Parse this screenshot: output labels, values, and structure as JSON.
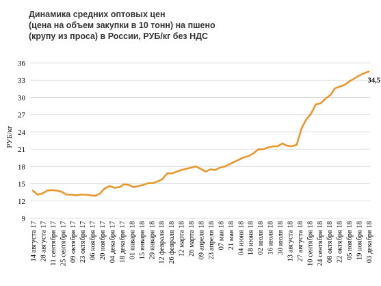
{
  "chart_data": {
    "type": "line",
    "title": [
      "Динамика средних оптовых цен",
      "(цена на объем закупки в 10 тонн) на пшено",
      "(крупу из проса) в России, РУБ/кг без НДС"
    ],
    "ylabel": "РУБ/кг",
    "ylim": [
      9,
      36
    ],
    "yticks": [
      9,
      12,
      15,
      18,
      21,
      24,
      27,
      30,
      33,
      36
    ],
    "grid": true,
    "line_color": "#E8962E",
    "x_tick_labels": [
      "14 августа 17",
      "28 августа 17",
      "11 сентября 17",
      "25 сентября 17",
      "09 октября 17",
      "23 октября 17",
      "06 ноября 17",
      "20 ноября 17",
      "04 декабря 17",
      "18 декабря 17",
      "01 января 18",
      "15 января 18",
      "29 января 18",
      "12 февраля 18",
      "26 февраля 18",
      "12 марта 18",
      "26 марта 18",
      "09 апреля 18",
      "23 апреля 18",
      "07 мая 18",
      "21 мая 18",
      "04 июня 18",
      "18 июня 18",
      "02 июля 18",
      "16 июля 18",
      "30 июля 18",
      "13 августа 18",
      "27 августа 18",
      "10 сентября 18",
      "24 сентября 18",
      "08 октября 18",
      "22 октября 18",
      "05 ноября 18",
      "19 ноября 18",
      "03 декабря 18"
    ],
    "values": [
      13.8,
      13.1,
      13.3,
      13.8,
      13.9,
      13.8,
      13.6,
      13.1,
      13.1,
      13.0,
      13.1,
      13.1,
      13.0,
      12.9,
      13.3,
      14.2,
      14.6,
      14.3,
      14.4,
      14.9,
      14.8,
      14.4,
      14.6,
      14.8,
      15.1,
      15.1,
      15.4,
      15.8,
      16.8,
      16.8,
      17.1,
      17.4,
      17.6,
      17.8,
      18.0,
      17.6,
      17.1,
      17.5,
      17.4,
      17.8,
      18.0,
      18.4,
      18.8,
      19.2,
      19.6,
      19.8,
      20.3,
      21.0,
      21.0,
      21.3,
      21.5,
      21.5,
      22.0,
      21.6,
      21.5,
      21.8,
      24.6,
      26.2,
      27.2,
      28.8,
      29.0,
      29.8,
      30.4,
      31.6,
      31.9,
      32.2,
      32.8,
      33.3,
      33.8,
      34.2,
      34.5
    ],
    "last_value_label": "34,5"
  }
}
